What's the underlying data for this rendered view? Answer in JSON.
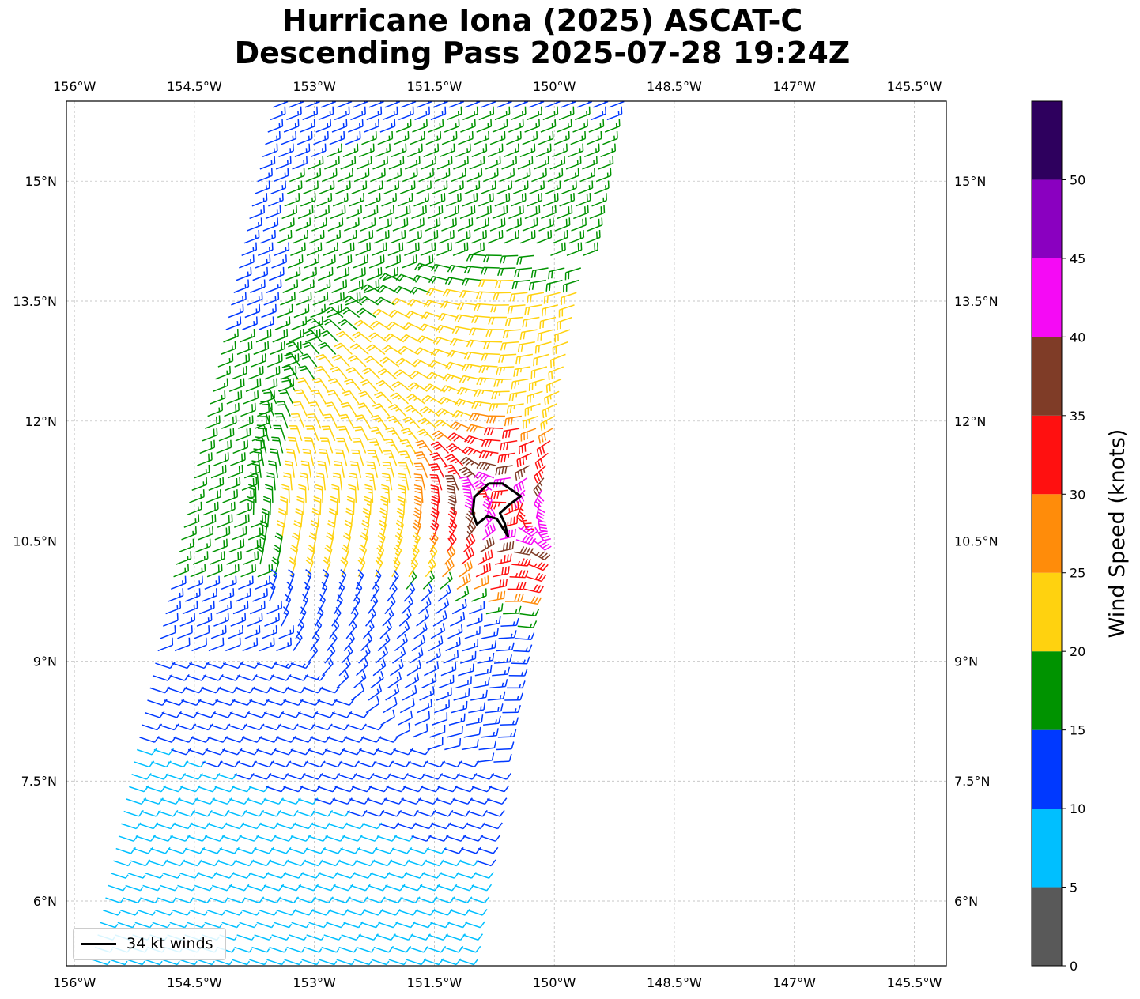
{
  "chart_data": {
    "type": "wind-barb map",
    "title_line1": "Hurricane Iona (2025) ASCAT-C",
    "title_line2": "Descending Pass 2025-07-28 19:24Z",
    "x_ticks": [
      "156°W",
      "154.5°W",
      "153°W",
      "151.5°W",
      "150°W",
      "148.5°W",
      "147°W",
      "145.5°W"
    ],
    "x_tick_values": [
      -156,
      -154.5,
      -153,
      -151.5,
      -150,
      -148.5,
      -147,
      -145.5
    ],
    "y_ticks": [
      "15°N",
      "13.5°N",
      "12°N",
      "10.5°N",
      "9°N",
      "7.5°N",
      "6°N"
    ],
    "y_tick_values": [
      15,
      13.5,
      12,
      10.5,
      9,
      7.5,
      6
    ],
    "lon_range": [
      -156.1,
      -145.1
    ],
    "lat_range": [
      5.19,
      16.0
    ],
    "grid": true,
    "storm_center": {
      "lon": -150.6,
      "lat": 10.9
    },
    "swath": {
      "corners_lon_lat": [
        [
          -153.6,
          16.0
        ],
        [
          -149.2,
          16.0
        ],
        [
          -151.1,
          5.19
        ],
        [
          -155.9,
          5.19
        ]
      ]
    },
    "colorbar": {
      "label": "Wind Speed (knots)",
      "ticks": [
        "0",
        "5",
        "10",
        "15",
        "20",
        "25",
        "30",
        "35",
        "40",
        "45",
        "50"
      ],
      "bins": [
        {
          "min": 0,
          "max": 5,
          "color": "#595959"
        },
        {
          "min": 5,
          "max": 10,
          "color": "#00bfff"
        },
        {
          "min": 10,
          "max": 15,
          "color": "#0039ff"
        },
        {
          "min": 15,
          "max": 20,
          "color": "#009300"
        },
        {
          "min": 20,
          "max": 25,
          "color": "#ffd20f"
        },
        {
          "min": 25,
          "max": 30,
          "color": "#ff8c0a"
        },
        {
          "min": 30,
          "max": 35,
          "color": "#ff1010"
        },
        {
          "min": 35,
          "max": 40,
          "color": "#7f3c27"
        },
        {
          "min": 40,
          "max": 45,
          "color": "#f50af5"
        },
        {
          "min": 45,
          "max": 50,
          "color": "#8a00c0"
        },
        {
          "min": 50,
          "max": 55,
          "color": "#2e005e"
        }
      ]
    },
    "legend": {
      "label": "34 kt winds",
      "placement": "lower-left"
    },
    "wind_34kt_contour": [
      [
        -150.82,
        11.22
      ],
      [
        -150.65,
        11.22
      ],
      [
        -150.42,
        11.06
      ],
      [
        -150.57,
        10.95
      ],
      [
        -150.68,
        10.85
      ],
      [
        -150.62,
        10.72
      ],
      [
        -150.58,
        10.56
      ],
      [
        -150.72,
        10.78
      ],
      [
        -150.84,
        10.81
      ],
      [
        -150.97,
        10.71
      ],
      [
        -151.02,
        10.85
      ],
      [
        -151.0,
        11.05
      ],
      [
        -150.82,
        11.22
      ]
    ]
  }
}
